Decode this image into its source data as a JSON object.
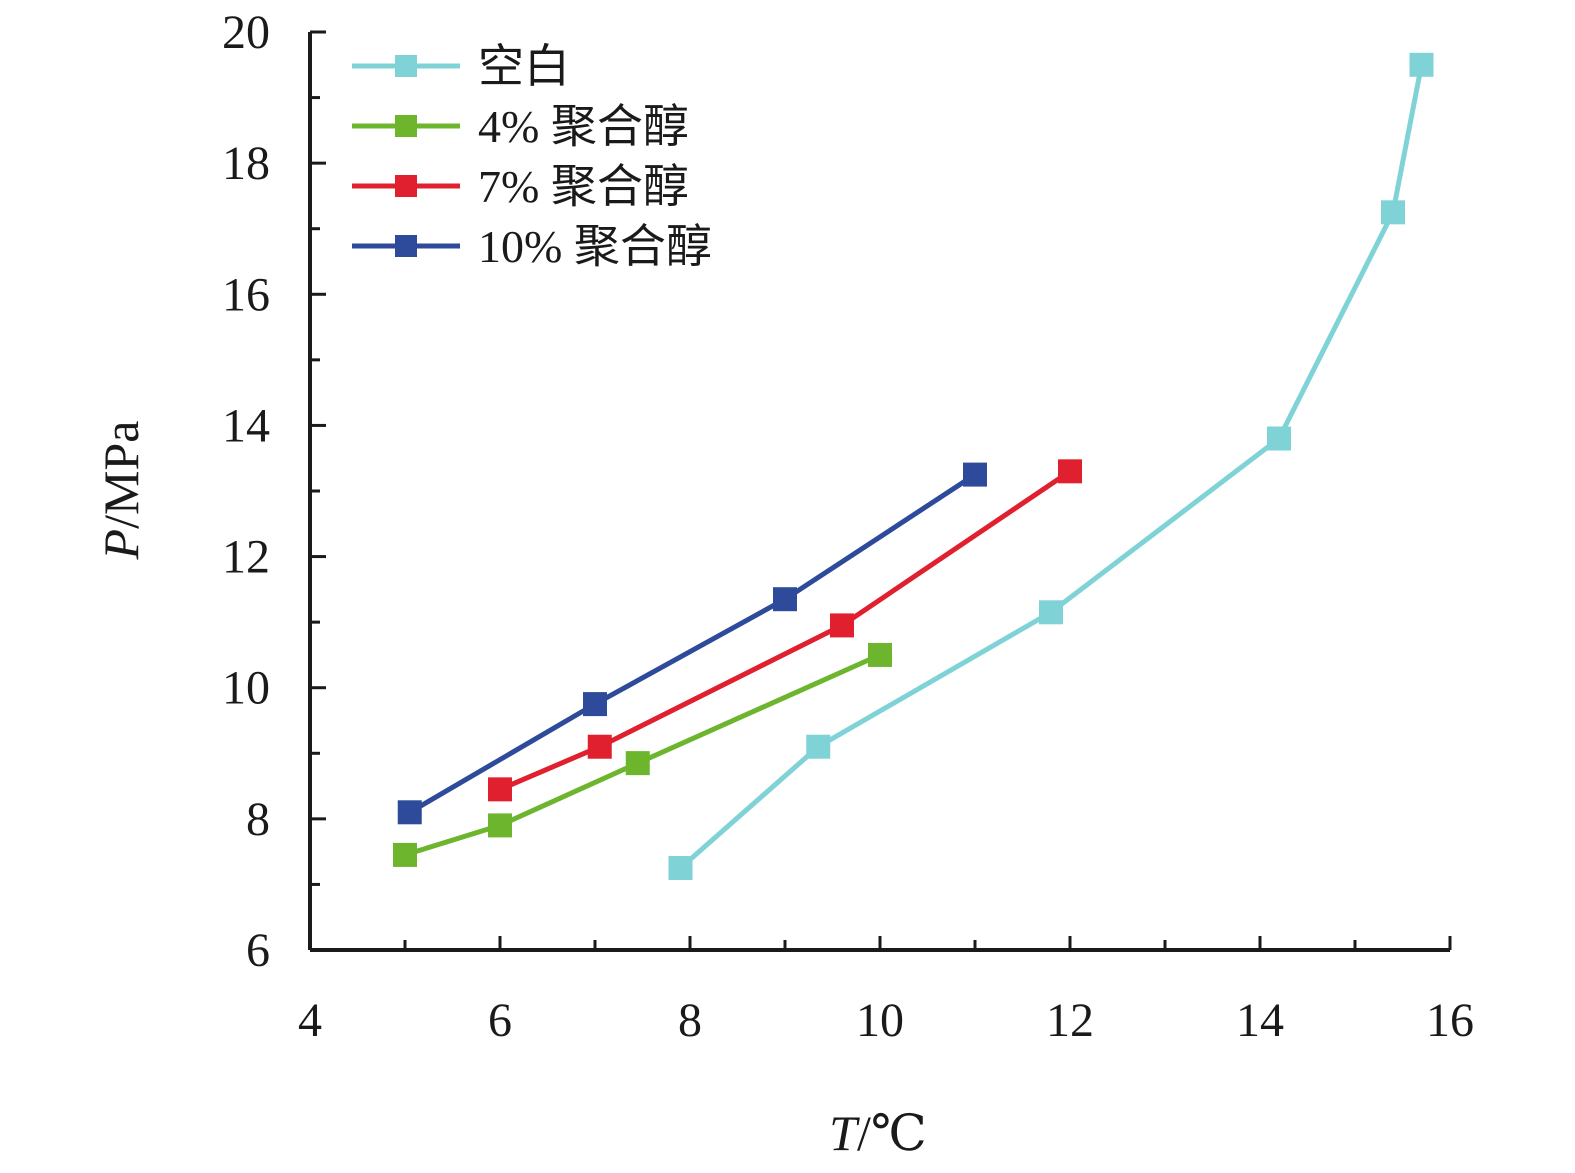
{
  "chart_data": {
    "type": "line",
    "title": "",
    "xlabel_var": "T",
    "xlabel_unit": "/℃",
    "ylabel_var": "P",
    "ylabel_unit": "/MPa",
    "xlim": [
      4,
      16
    ],
    "ylim": [
      6,
      20
    ],
    "x_ticks": [
      4,
      6,
      8,
      10,
      12,
      14,
      16
    ],
    "y_ticks": [
      6,
      8,
      10,
      12,
      14,
      16,
      18,
      20
    ],
    "x_minor_step": 1,
    "y_minor_step": 1,
    "grid": false,
    "legend_position": "top-left",
    "series": [
      {
        "name": "空白",
        "color": "#7fd3d6",
        "marker": "square",
        "points": [
          [
            7.9,
            7.25
          ],
          [
            9.35,
            9.1
          ],
          [
            11.8,
            11.15
          ],
          [
            14.2,
            13.8
          ],
          [
            15.4,
            17.25
          ],
          [
            15.7,
            19.5
          ]
        ]
      },
      {
        "name": "4% 聚合醇",
        "color": "#6cb52d",
        "marker": "square",
        "points": [
          [
            5.0,
            7.45
          ],
          [
            6.0,
            7.9
          ],
          [
            7.45,
            8.85
          ],
          [
            10.0,
            10.5
          ]
        ]
      },
      {
        "name": "7% 聚合醇",
        "color": "#e0202e",
        "marker": "square",
        "points": [
          [
            6.0,
            8.45
          ],
          [
            7.05,
            9.1
          ],
          [
            9.6,
            10.95
          ],
          [
            12.0,
            13.3
          ]
        ]
      },
      {
        "name": "10% 聚合醇",
        "color": "#2e4a9a",
        "marker": "square",
        "points": [
          [
            5.05,
            8.1
          ],
          [
            7.0,
            9.75
          ],
          [
            9.0,
            11.35
          ],
          [
            11.0,
            13.25
          ]
        ]
      }
    ]
  }
}
